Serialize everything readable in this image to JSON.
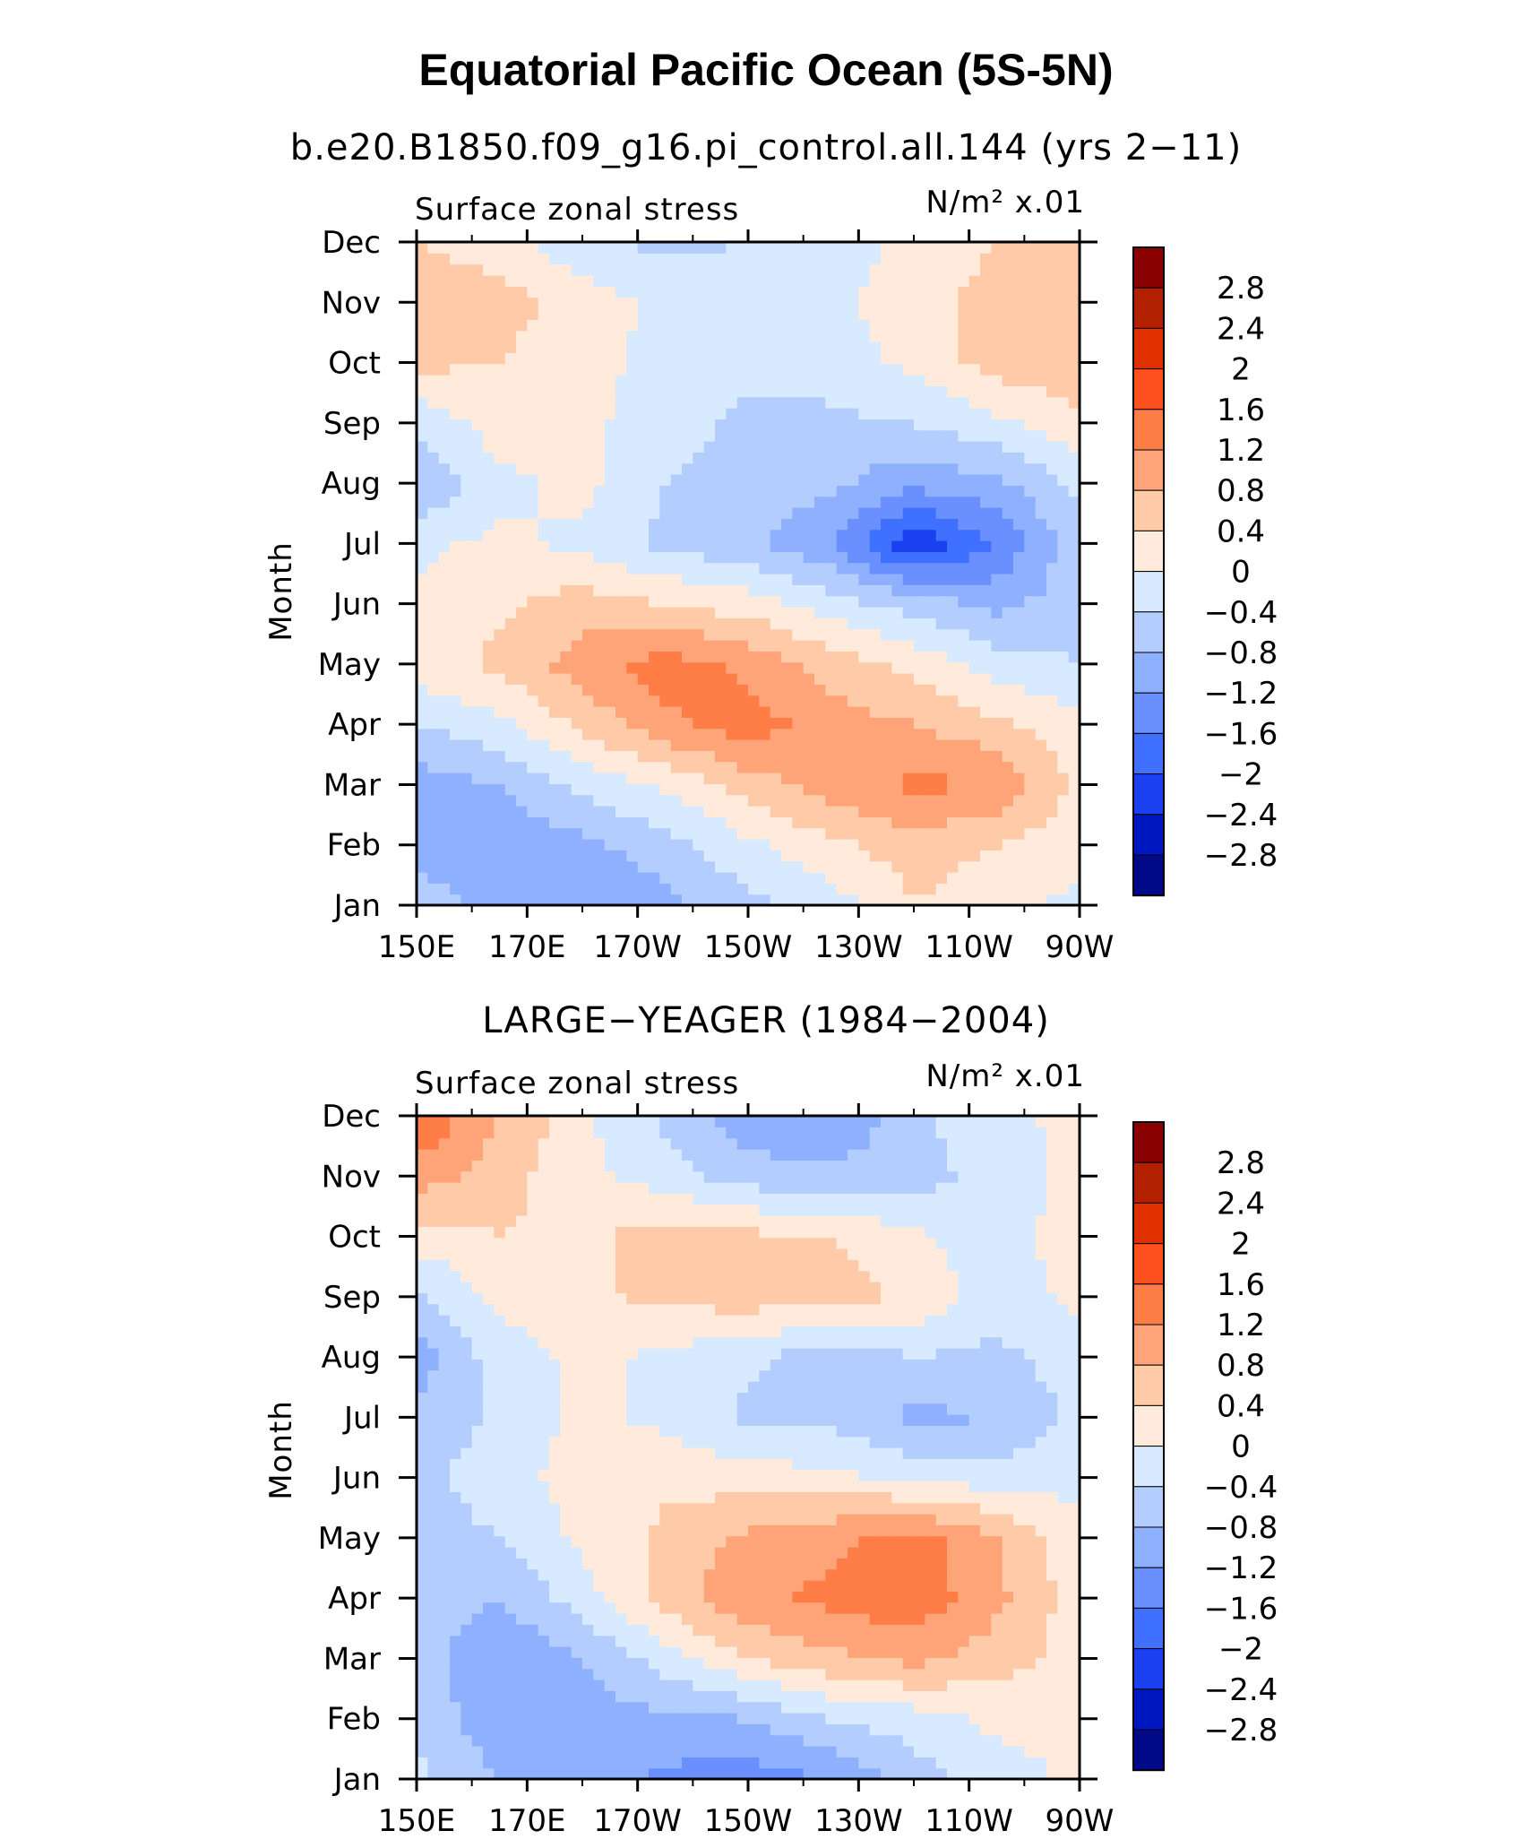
{
  "title": "Equatorial Pacific Ocean (5S-5N)",
  "chart_data": [
    {
      "type": "heatmap",
      "subtitle": "b.e20.B1850.f09_g16.pi_control.all.144 (yrs 2−11)",
      "left_label": "Surface zonal stress",
      "right_label": "N/m² x.01",
      "ylabel": "Month",
      "x_ticks": [
        "150E",
        "170E",
        "170W",
        "150W",
        "130W",
        "110W",
        "90W"
      ],
      "y_ticks": [
        "Jan",
        "Feb",
        "Mar",
        "Apr",
        "May",
        "Jun",
        "Jul",
        "Aug",
        "Sep",
        "Oct",
        "Nov",
        "Dec"
      ],
      "xlim_deg_east": [
        150,
        270
      ],
      "colorbar_labels": [
        "2.8",
        "2.4",
        "2",
        "1.6",
        "1.2",
        "0.8",
        "0.4",
        "0",
        "−0.4",
        "−0.8",
        "−1.2",
        "−1.6",
        "−2",
        "−2.4",
        "−2.8"
      ],
      "grid_lon": [
        150,
        165,
        180,
        195,
        210,
        225,
        240,
        255,
        270
      ],
      "values": [
        [
          -0.6,
          -0.9,
          -1.2,
          -0.9,
          -0.5,
          -0.2,
          0.4,
          0.1,
          -0.1
        ],
        [
          -1.0,
          -1.1,
          -0.9,
          -0.6,
          -0.1,
          0.3,
          0.6,
          0.4,
          0.1
        ],
        [
          -1.0,
          -0.8,
          -0.3,
          0.1,
          0.6,
          1.0,
          1.3,
          1.2,
          0.3
        ],
        [
          -0.4,
          -0.1,
          0.5,
          1.1,
          1.4,
          1.0,
          0.8,
          0.5,
          0.1
        ],
        [
          0.2,
          0.5,
          1.0,
          1.4,
          1.1,
          0.6,
          0.3,
          -0.2,
          -0.4
        ],
        [
          0.1,
          0.3,
          0.6,
          0.4,
          0.2,
          -0.2,
          -0.6,
          -0.9,
          -0.6
        ],
        [
          -0.1,
          0.1,
          -0.1,
          -0.5,
          -0.7,
          -1.2,
          -2.3,
          -1.6,
          -0.5
        ],
        [
          -0.8,
          -0.1,
          0.1,
          -0.4,
          -0.6,
          -0.7,
          -1.1,
          -0.9,
          -0.3
        ],
        [
          -0.3,
          0.2,
          0.1,
          -0.2,
          -0.5,
          -0.5,
          -0.4,
          -0.1,
          0.3
        ],
        [
          0.5,
          0.4,
          0.1,
          -0.1,
          -0.3,
          -0.2,
          0.1,
          0.6,
          0.7
        ],
        [
          0.6,
          0.6,
          0.2,
          -0.1,
          -0.2,
          -0.1,
          0.2,
          0.6,
          0.7
        ],
        [
          0.4,
          0.2,
          -0.3,
          -0.5,
          -0.4,
          -0.2,
          0.1,
          0.4,
          0.6
        ]
      ]
    },
    {
      "type": "heatmap",
      "subtitle": "LARGE−YEAGER (1984−2004)",
      "left_label": "Surface zonal stress",
      "right_label": "N/m² x.01",
      "ylabel": "Month",
      "x_ticks": [
        "150E",
        "170E",
        "170W",
        "150W",
        "130W",
        "110W",
        "90W"
      ],
      "y_ticks": [
        "Jan",
        "Feb",
        "Mar",
        "Apr",
        "May",
        "Jun",
        "Jul",
        "Aug",
        "Sep",
        "Oct",
        "Nov",
        "Dec"
      ],
      "xlim_deg_east": [
        150,
        270
      ],
      "colorbar_labels": [
        "2.8",
        "2.4",
        "2",
        "1.6",
        "1.2",
        "0.8",
        "0.4",
        "0",
        "−0.4",
        "−0.8",
        "−1.2",
        "−1.6",
        "−2",
        "−2.4",
        "−2.8"
      ],
      "grid_lon": [
        150,
        165,
        180,
        195,
        210,
        225,
        240,
        255,
        270
      ],
      "values": [
        [
          -0.3,
          -0.8,
          -0.9,
          -1.3,
          -1.4,
          -1.2,
          -0.6,
          -0.2,
          0.1
        ],
        [
          -0.5,
          -1.1,
          -1.0,
          -0.9,
          -0.8,
          -0.4,
          -0.2,
          0.1,
          0.1
        ],
        [
          -0.6,
          -1.2,
          -0.8,
          -0.2,
          0.4,
          0.7,
          0.9,
          0.6,
          0.2
        ],
        [
          -0.5,
          -0.8,
          -0.2,
          0.6,
          1.1,
          1.3,
          1.5,
          0.9,
          0.2
        ],
        [
          -0.6,
          -0.4,
          0.1,
          0.5,
          0.9,
          1.1,
          1.4,
          0.8,
          0.1
        ],
        [
          -0.5,
          -0.2,
          0.2,
          0.3,
          0.2,
          0.1,
          -0.1,
          -0.2,
          -0.1
        ],
        [
          -0.7,
          -0.3,
          0.1,
          -0.1,
          -0.5,
          -0.5,
          -0.9,
          -0.8,
          -0.3
        ],
        [
          -1.0,
          -0.2,
          0.1,
          -0.1,
          -0.3,
          -0.7,
          -0.4,
          -0.5,
          -0.2
        ],
        [
          -0.5,
          0.1,
          0.3,
          0.5,
          0.6,
          0.6,
          0.3,
          -0.2,
          0.1
        ],
        [
          0.2,
          0.4,
          0.3,
          0.6,
          0.5,
          0.4,
          0.1,
          -0.3,
          0.3
        ],
        [
          1.0,
          0.6,
          0.1,
          -0.2,
          -0.6,
          -0.7,
          -0.6,
          -0.2,
          0.1
        ],
        [
          1.6,
          0.8,
          0.1,
          -0.5,
          -1.1,
          -1.2,
          -0.5,
          -0.1,
          0.1
        ]
      ]
    }
  ],
  "colors": {
    "palette_high_to_low": [
      "#8b0000",
      "#b22000",
      "#e03000",
      "#ff5020",
      "#ff7e48",
      "#ffa478",
      "#ffcaa8",
      "#ffeadc",
      "#d8eaff",
      "#b4cdff",
      "#8eb0ff",
      "#6a90ff",
      "#4070ff",
      "#1a40f0",
      "#0018c0",
      "#000a88"
    ]
  }
}
